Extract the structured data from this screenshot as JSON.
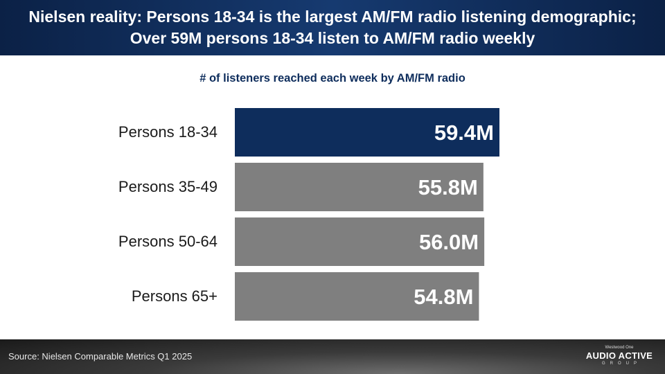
{
  "header": {
    "title": "Nielsen reality: Persons 18-34 is the largest AM/FM radio listening demographic; Over 59M persons 18-34 listen to AM/FM radio weekly"
  },
  "chart_data": {
    "type": "bar",
    "orientation": "horizontal",
    "title": "# of listeners reached each week by AM/FM radio",
    "categories": [
      "Persons 18-34",
      "Persons 35-49",
      "Persons 50-64",
      "Persons 65+"
    ],
    "values": [
      59.4,
      55.8,
      56.0,
      54.8
    ],
    "data_labels": [
      "59.4M",
      "55.8M",
      "56.0M",
      "54.8M"
    ],
    "unit": "M",
    "highlight_index": 0,
    "colors": {
      "highlight": "#0e2d5c",
      "default": "#7f7f7f",
      "label": "#ffffff"
    },
    "xlim": [
      0,
      59.4
    ],
    "grid": false,
    "legend": "none"
  },
  "footer": {
    "source": "Source: Nielsen Comparable Metrics Q1 2025",
    "logo": {
      "top": "Westwood One",
      "main": "AUDIO ACTIVE",
      "sub": "GROUP"
    }
  }
}
